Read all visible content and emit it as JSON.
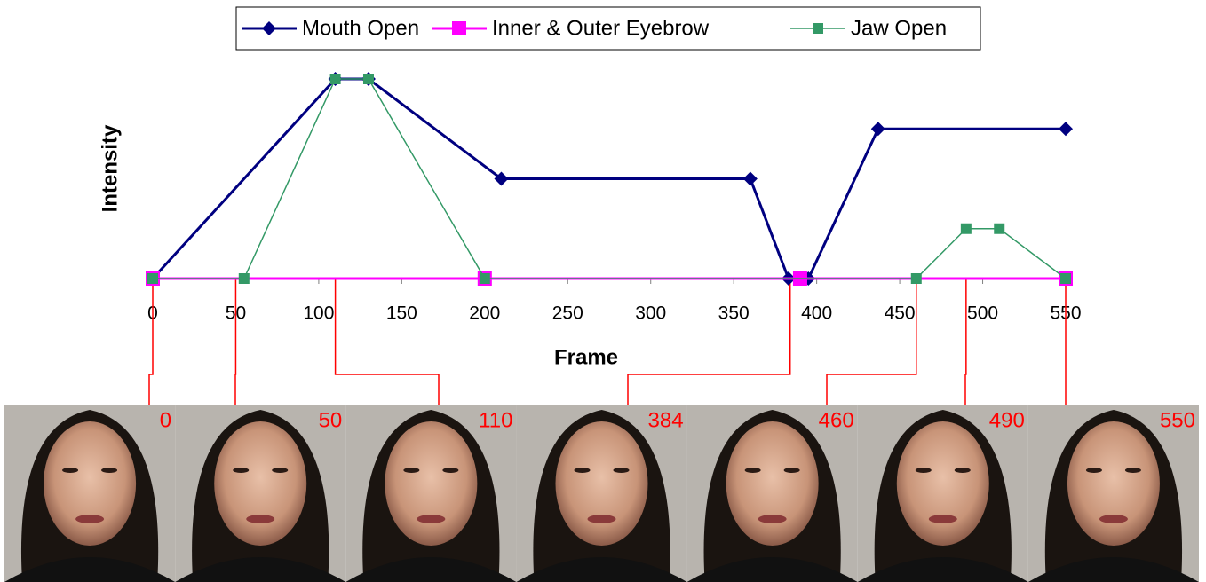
{
  "chart_data": {
    "type": "line",
    "x_label": "Frame",
    "y_label": "Intensity",
    "xlim": [
      0,
      550
    ],
    "ylim": [
      0,
      4
    ],
    "xticks": [
      0,
      50,
      100,
      150,
      200,
      250,
      300,
      350,
      400,
      450,
      500,
      550
    ],
    "legend": "top",
    "series": [
      {
        "name": "Mouth Open",
        "color": "#000080",
        "marker": "diamond",
        "x": [
          0,
          110,
          130,
          210,
          360,
          383,
          395,
          437,
          550
        ],
        "values": [
          0,
          4,
          4,
          2,
          2,
          0,
          0,
          3,
          3
        ]
      },
      {
        "name": "Inner & Outer Eyebrow",
        "color": "#ff00ff",
        "marker": "square",
        "x": [
          0,
          200,
          390,
          550
        ],
        "values": [
          0,
          0,
          0,
          0
        ]
      },
      {
        "name": "Jaw Open",
        "color": "#339966",
        "marker": "small-square",
        "x": [
          0,
          55,
          110,
          130,
          200,
          460,
          490,
          510,
          550
        ],
        "values": [
          0,
          0,
          4,
          4,
          0,
          0,
          1,
          1,
          0
        ]
      }
    ],
    "frame_panels": [
      0,
      50,
      110,
      384,
      460,
      490,
      550
    ]
  }
}
